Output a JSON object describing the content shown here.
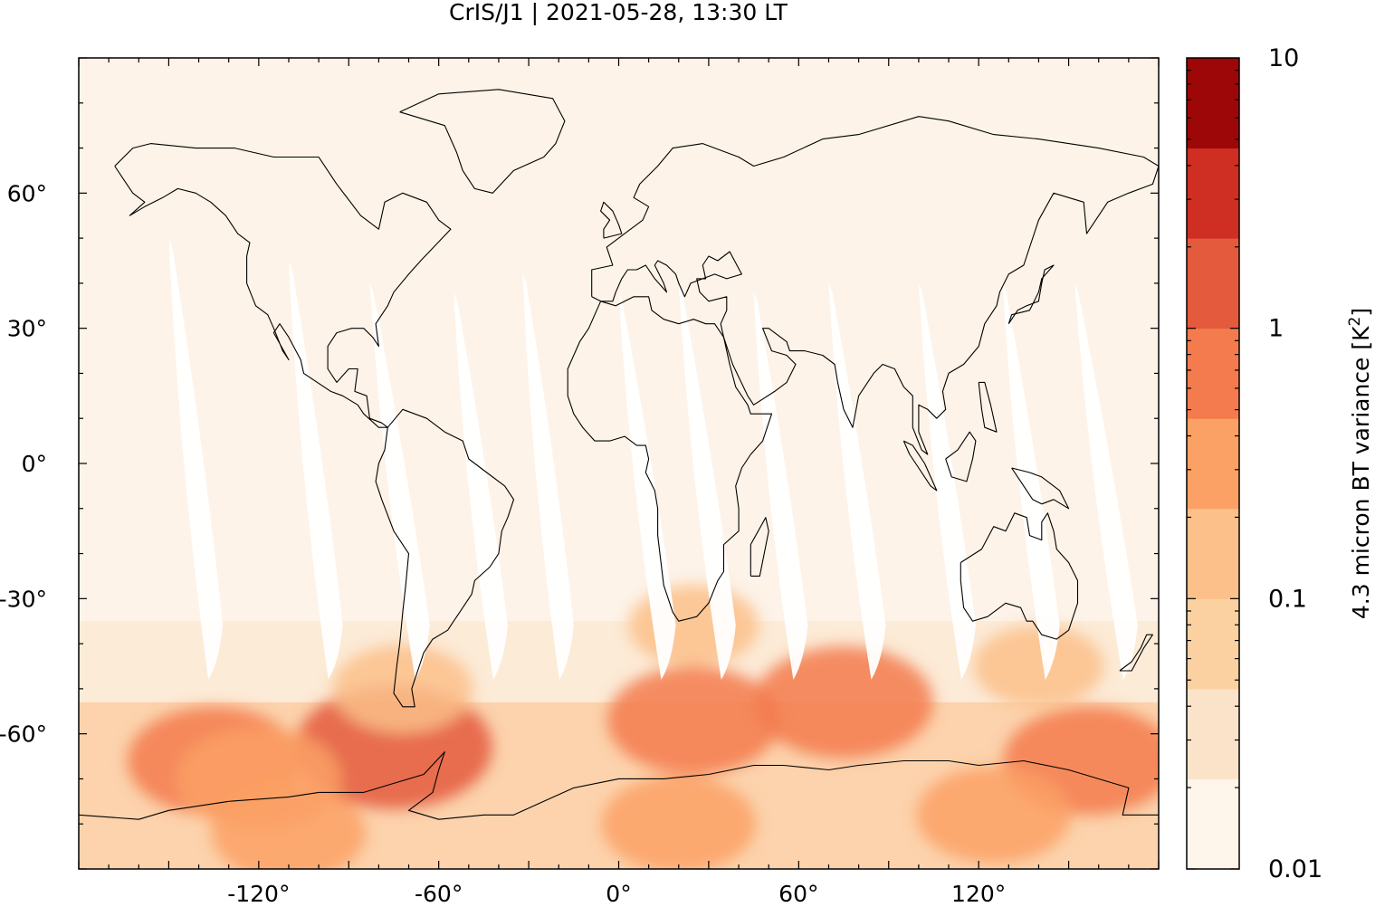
{
  "chart_data": {
    "type": "heatmap",
    "title": "CrIS/J1 | 2021-05-28, 13:30 LT",
    "projection": "equirectangular",
    "xlim": [
      -180,
      180
    ],
    "ylim": [
      -90,
      90
    ],
    "x_ticks": [
      {
        "value": -120,
        "label": "-120°"
      },
      {
        "value": -60,
        "label": "-60°"
      },
      {
        "value": 0,
        "label": "0°"
      },
      {
        "value": 60,
        "label": "60°"
      },
      {
        "value": 120,
        "label": "120°"
      }
    ],
    "y_ticks": [
      {
        "value": 60,
        "label": "60°"
      },
      {
        "value": 30,
        "label": "30°"
      },
      {
        "value": 0,
        "label": "0°"
      },
      {
        "value": -30,
        "label": "-30°"
      },
      {
        "value": -60,
        "label": "-60°"
      }
    ],
    "colorbar": {
      "label": "4.3 micron BT variance [K",
      "label_superscript": "2",
      "label_suffix": "]",
      "scale": "log",
      "range": [
        0.01,
        10
      ],
      "tick_labels": [
        {
          "value": 10,
          "label": "10"
        },
        {
          "value": 1,
          "label": "1"
        },
        {
          "value": 0.1,
          "label": "0.1"
        },
        {
          "value": 0.01,
          "label": "0.01"
        }
      ],
      "colors": [
        "#fef5eb",
        "#fbe3c9",
        "#fcd1a2",
        "#fcc08a",
        "#fca165",
        "#f37b4e",
        "#e45a3d",
        "#ce2f22",
        "#9e0707"
      ]
    },
    "background_value_color": "#fdf3e8",
    "gap_color": "#ffffff",
    "swath_gaps": [
      {
        "top_lon": -150,
        "bottom_lon": -135,
        "lat_top": 50,
        "lat_bottom": -48
      },
      {
        "top_lon": -110,
        "bottom_lon": -95,
        "lat_top": 45,
        "lat_bottom": -48
      },
      {
        "top_lon": -83,
        "bottom_lon": -66,
        "lat_top": 40,
        "lat_bottom": -48
      },
      {
        "top_lon": -55,
        "bottom_lon": -40,
        "lat_top": 38,
        "lat_bottom": -48
      },
      {
        "top_lon": -32,
        "bottom_lon": -18,
        "lat_top": 42,
        "lat_bottom": -48
      },
      {
        "top_lon": 0,
        "bottom_lon": 16,
        "lat_top": 38,
        "lat_bottom": -48
      },
      {
        "top_lon": 20,
        "bottom_lon": 36,
        "lat_top": 40,
        "lat_bottom": -48
      },
      {
        "top_lon": 45,
        "bottom_lon": 60,
        "lat_top": 38,
        "lat_bottom": -48
      },
      {
        "top_lon": 70,
        "bottom_lon": 86,
        "lat_top": 40,
        "lat_bottom": -48
      },
      {
        "top_lon": 100,
        "bottom_lon": 116,
        "lat_top": 40,
        "lat_bottom": -48
      },
      {
        "top_lon": 128,
        "bottom_lon": 144,
        "lat_top": 40,
        "lat_bottom": -48
      },
      {
        "top_lon": 152,
        "bottom_lon": 170,
        "lat_top": 40,
        "lat_bottom": -48
      }
    ],
    "hotspots": [
      {
        "lon": -75,
        "lat": -63,
        "value": 1.0
      },
      {
        "lon": -135,
        "lat": -66,
        "value": 0.5
      },
      {
        "lon": -120,
        "lat": -70,
        "value": 0.4
      },
      {
        "lon": 25,
        "lat": -57,
        "value": 0.5
      },
      {
        "lon": 75,
        "lat": -53,
        "value": 0.6
      },
      {
        "lon": 157,
        "lat": -66,
        "value": 0.5
      },
      {
        "lon": -110,
        "lat": -82,
        "value": 0.3
      },
      {
        "lon": 20,
        "lat": -80,
        "value": 0.3
      },
      {
        "lon": 125,
        "lat": -78,
        "value": 0.3
      },
      {
        "lon": 25,
        "lat": -36,
        "value": 0.15
      },
      {
        "lon": -72,
        "lat": -50,
        "value": 0.2
      },
      {
        "lon": 140,
        "lat": -45,
        "value": 0.15
      }
    ],
    "southern_band": {
      "lat_from": -35,
      "lat_to": -90,
      "typical_value": 0.1
    },
    "coastlines": true
  }
}
